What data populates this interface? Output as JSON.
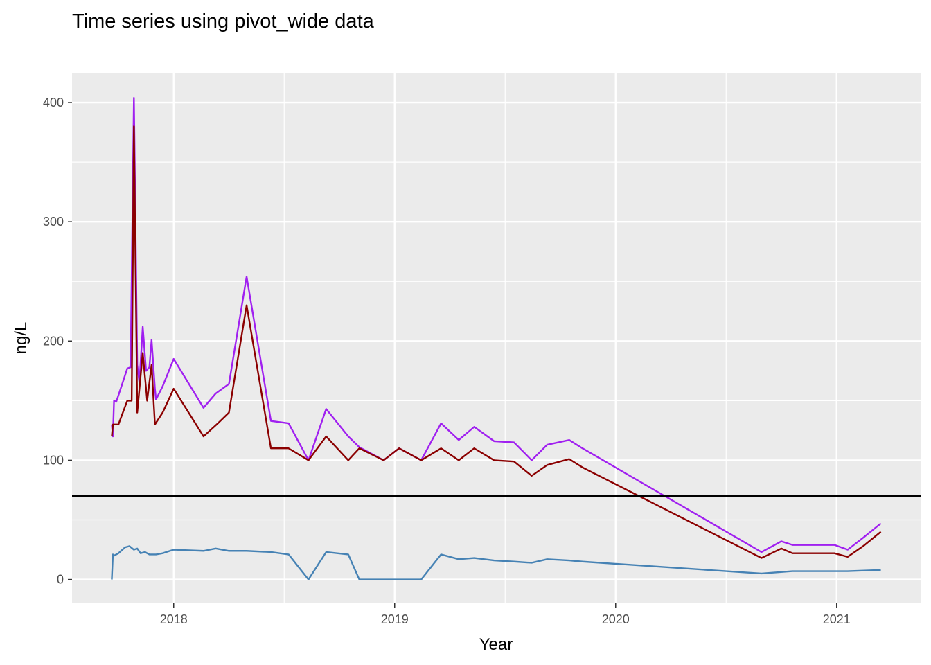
{
  "chart_data": {
    "type": "line",
    "title": "Time series using pivot_wide data",
    "xlabel": "Year",
    "ylabel": "ng/L",
    "x_range": [
      2017.54,
      2021.38
    ],
    "ylim": [
      -20,
      425
    ],
    "x_ticks": [
      2018,
      2019,
      2020,
      2021
    ],
    "x_tick_labels": [
      "2018",
      "2019",
      "2020",
      "2021"
    ],
    "y_ticks": [
      0,
      100,
      200,
      300,
      400
    ],
    "y_tick_labels": [
      "0",
      "100",
      "200",
      "300",
      "400"
    ],
    "grid": true,
    "legend": "none",
    "reference_line": {
      "y": 70,
      "color": "#000000"
    },
    "series": [
      {
        "color": "#A020F0",
        "points": [
          [
            2017.72,
            130
          ],
          [
            2017.725,
            120
          ],
          [
            2017.73,
            150
          ],
          [
            2017.74,
            149
          ],
          [
            2017.76,
            160
          ],
          [
            2017.79,
            177
          ],
          [
            2017.805,
            178
          ],
          [
            2017.82,
            404
          ],
          [
            2017.835,
            180
          ],
          [
            2017.845,
            165
          ],
          [
            2017.86,
            212
          ],
          [
            2017.875,
            175
          ],
          [
            2017.89,
            178
          ],
          [
            2017.9,
            201
          ],
          [
            2017.915,
            160
          ],
          [
            2017.92,
            151
          ],
          [
            2017.95,
            162
          ],
          [
            2018.0,
            185
          ],
          [
            2018.135,
            144
          ],
          [
            2018.19,
            156
          ],
          [
            2018.25,
            164
          ],
          [
            2018.33,
            254
          ],
          [
            2018.44,
            133
          ],
          [
            2018.52,
            131
          ],
          [
            2018.61,
            100
          ],
          [
            2018.69,
            143
          ],
          [
            2018.79,
            120
          ],
          [
            2018.84,
            111
          ],
          [
            2018.95,
            100
          ],
          [
            2019.02,
            110
          ],
          [
            2019.12,
            100
          ],
          [
            2019.21,
            131
          ],
          [
            2019.29,
            117
          ],
          [
            2019.36,
            128
          ],
          [
            2019.45,
            116
          ],
          [
            2019.54,
            115
          ],
          [
            2019.62,
            100
          ],
          [
            2019.69,
            113
          ],
          [
            2019.79,
            117
          ],
          [
            2019.85,
            110
          ],
          [
            2020.66,
            23
          ],
          [
            2020.75,
            32
          ],
          [
            2020.8,
            29
          ],
          [
            2020.99,
            29
          ],
          [
            2021.05,
            25
          ],
          [
            2021.12,
            35
          ],
          [
            2021.2,
            47
          ]
        ]
      },
      {
        "color": "#8B0000",
        "points": [
          [
            2017.72,
            120
          ],
          [
            2017.725,
            130
          ],
          [
            2017.75,
            130
          ],
          [
            2017.79,
            150
          ],
          [
            2017.81,
            150
          ],
          [
            2017.82,
            380
          ],
          [
            2017.835,
            140
          ],
          [
            2017.86,
            190
          ],
          [
            2017.88,
            150
          ],
          [
            2017.9,
            180
          ],
          [
            2017.915,
            130
          ],
          [
            2017.95,
            140
          ],
          [
            2018.0,
            160
          ],
          [
            2018.135,
            120
          ],
          [
            2018.2,
            131
          ],
          [
            2018.25,
            140
          ],
          [
            2018.33,
            230
          ],
          [
            2018.44,
            110
          ],
          [
            2018.52,
            110
          ],
          [
            2018.61,
            100
          ],
          [
            2018.69,
            120
          ],
          [
            2018.79,
            100
          ],
          [
            2018.84,
            110
          ],
          [
            2018.95,
            100
          ],
          [
            2019.02,
            110
          ],
          [
            2019.12,
            100
          ],
          [
            2019.21,
            110
          ],
          [
            2019.29,
            100
          ],
          [
            2019.36,
            110
          ],
          [
            2019.45,
            100
          ],
          [
            2019.54,
            99
          ],
          [
            2019.62,
            87
          ],
          [
            2019.69,
            96
          ],
          [
            2019.79,
            101
          ],
          [
            2019.85,
            94
          ],
          [
            2020.66,
            18
          ],
          [
            2020.75,
            26
          ],
          [
            2020.8,
            22
          ],
          [
            2020.99,
            22
          ],
          [
            2021.05,
            19
          ],
          [
            2021.12,
            28
          ],
          [
            2021.2,
            40
          ]
        ]
      },
      {
        "color": "#4682B4",
        "points": [
          [
            2017.72,
            0
          ],
          [
            2017.725,
            21
          ],
          [
            2017.73,
            20
          ],
          [
            2017.75,
            22
          ],
          [
            2017.78,
            27
          ],
          [
            2017.8,
            28
          ],
          [
            2017.82,
            25
          ],
          [
            2017.835,
            26
          ],
          [
            2017.85,
            22
          ],
          [
            2017.87,
            23
          ],
          [
            2017.89,
            21
          ],
          [
            2017.92,
            21
          ],
          [
            2017.95,
            22
          ],
          [
            2018.0,
            25
          ],
          [
            2018.135,
            24
          ],
          [
            2018.19,
            26
          ],
          [
            2018.25,
            24
          ],
          [
            2018.33,
            24
          ],
          [
            2018.44,
            23
          ],
          [
            2018.52,
            21
          ],
          [
            2018.61,
            0
          ],
          [
            2018.69,
            23
          ],
          [
            2018.79,
            21
          ],
          [
            2018.84,
            0
          ],
          [
            2018.95,
            0
          ],
          [
            2019.0,
            0
          ],
          [
            2019.12,
            0
          ],
          [
            2019.21,
            21
          ],
          [
            2019.29,
            17
          ],
          [
            2019.36,
            18
          ],
          [
            2019.45,
            16
          ],
          [
            2019.54,
            15
          ],
          [
            2019.62,
            14
          ],
          [
            2019.69,
            17
          ],
          [
            2019.79,
            16
          ],
          [
            2019.85,
            15
          ],
          [
            2020.66,
            5
          ],
          [
            2020.8,
            7
          ],
          [
            2020.99,
            7
          ],
          [
            2021.05,
            7
          ],
          [
            2021.2,
            8
          ]
        ]
      }
    ]
  }
}
